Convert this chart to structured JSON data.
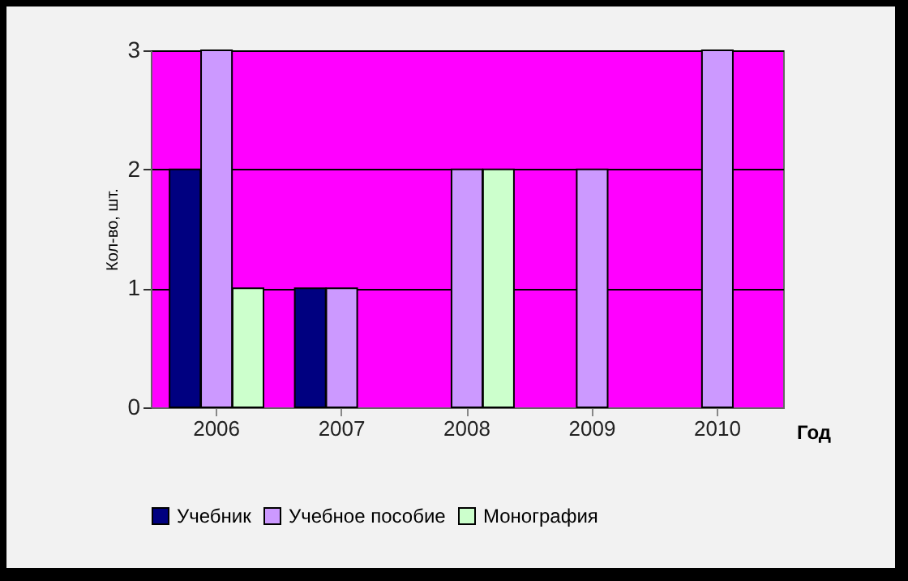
{
  "chart_data": {
    "type": "bar",
    "xlabel": "Год",
    "ylabel": "Кол-во, шт.",
    "categories": [
      "2006",
      "2007",
      "2008",
      "2009",
      "2010"
    ],
    "series": [
      {
        "name": "Учебник",
        "color": "#000080",
        "values": [
          2,
          1,
          null,
          null,
          null
        ]
      },
      {
        "name": "Учебное пособие",
        "color": "#cc99ff",
        "values": [
          3,
          1,
          2,
          2,
          3
        ]
      },
      {
        "name": "Монография",
        "color": "#ccffcc",
        "values": [
          1,
          null,
          2,
          null,
          null
        ]
      }
    ],
    "ylim": [
      0,
      3
    ],
    "yticks": [
      0,
      1,
      2,
      3
    ],
    "grid": "y",
    "legend": "bottom"
  }
}
